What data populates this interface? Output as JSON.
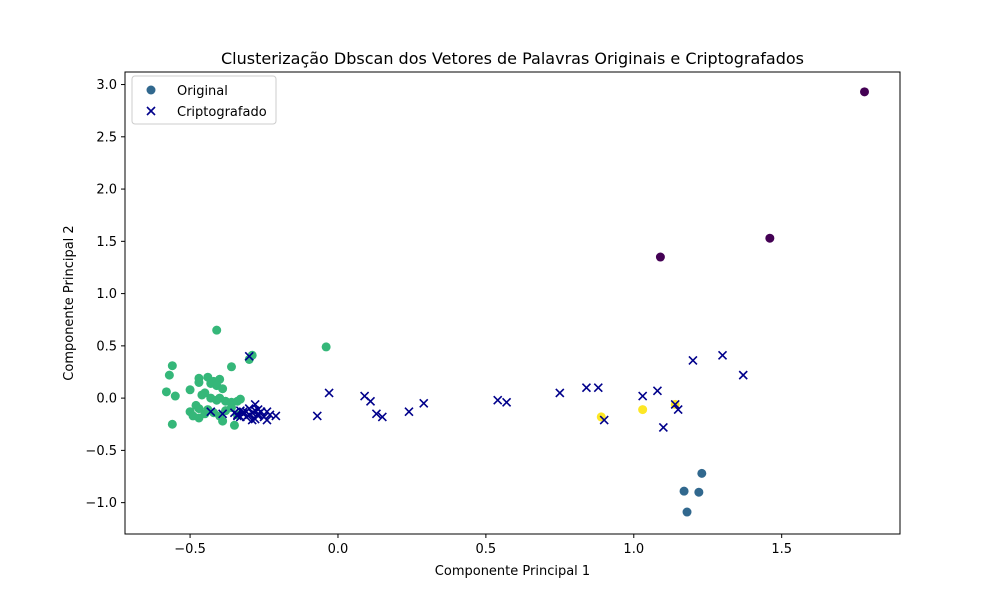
{
  "chart_data": {
    "type": "scatter",
    "title": "Clusterização Dbscan dos Vetores de Palavras Originais e Criptografados",
    "xlabel": "Componente Principal 1",
    "ylabel": "Componente Principal 2",
    "xlim": [
      -0.72,
      1.9
    ],
    "ylim": [
      -1.3,
      3.12
    ],
    "xticks": [
      -0.5,
      0.0,
      0.5,
      1.0,
      1.5
    ],
    "xtick_labels": [
      "−0.5",
      "0.0",
      "0.5",
      "1.0",
      "1.5"
    ],
    "yticks": [
      -1.0,
      -0.5,
      0.0,
      0.5,
      1.0,
      1.5,
      2.0,
      2.5,
      3.0
    ],
    "ytick_labels": [
      "−1.0",
      "−0.5",
      "0.0",
      "0.5",
      "1.0",
      "1.5",
      "2.0",
      "2.5",
      "3.0"
    ],
    "grid": false,
    "legend_position": "top-left",
    "cluster_colors": {
      "-1": "#440154",
      "0": "#31688e",
      "1": "#35b779",
      "2": "#fde725"
    },
    "series": [
      {
        "name": "Original",
        "marker": "circle",
        "legend_color": "#31688e",
        "points": [
          {
            "x": 1.78,
            "y": 2.93,
            "cluster": -1
          },
          {
            "x": 1.46,
            "y": 1.53,
            "cluster": -1
          },
          {
            "x": 1.09,
            "y": 1.35,
            "cluster": -1
          },
          {
            "x": 1.23,
            "y": -0.72,
            "cluster": 0
          },
          {
            "x": 1.17,
            "y": -0.89,
            "cluster": 0
          },
          {
            "x": 1.22,
            "y": -0.9,
            "cluster": 0
          },
          {
            "x": 1.18,
            "y": -1.09,
            "cluster": 0
          },
          {
            "x": -0.04,
            "y": 0.49,
            "cluster": 1
          },
          {
            "x": -0.41,
            "y": 0.65,
            "cluster": 1
          },
          {
            "x": -0.3,
            "y": 0.37,
            "cluster": 1
          },
          {
            "x": -0.29,
            "y": 0.41,
            "cluster": 1
          },
          {
            "x": -0.36,
            "y": 0.3,
            "cluster": 1
          },
          {
            "x": -0.56,
            "y": 0.31,
            "cluster": 1
          },
          {
            "x": -0.57,
            "y": 0.22,
            "cluster": 1
          },
          {
            "x": -0.58,
            "y": 0.06,
            "cluster": 1
          },
          {
            "x": -0.55,
            "y": 0.02,
            "cluster": 1
          },
          {
            "x": -0.5,
            "y": 0.08,
            "cluster": 1
          },
          {
            "x": -0.47,
            "y": 0.19,
            "cluster": 1
          },
          {
            "x": -0.47,
            "y": 0.15,
            "cluster": 1
          },
          {
            "x": -0.44,
            "y": 0.2,
            "cluster": 1
          },
          {
            "x": -0.43,
            "y": 0.14,
            "cluster": 1
          },
          {
            "x": -0.42,
            "y": 0.16,
            "cluster": 1
          },
          {
            "x": -0.4,
            "y": 0.18,
            "cluster": 1
          },
          {
            "x": -0.41,
            "y": 0.12,
            "cluster": 1
          },
          {
            "x": -0.39,
            "y": 0.09,
            "cluster": 1
          },
          {
            "x": -0.46,
            "y": 0.03,
            "cluster": 1
          },
          {
            "x": -0.45,
            "y": 0.05,
            "cluster": 1
          },
          {
            "x": -0.43,
            "y": 0.0,
            "cluster": 1
          },
          {
            "x": -0.41,
            "y": -0.02,
            "cluster": 1
          },
          {
            "x": -0.4,
            "y": 0.0,
            "cluster": 1
          },
          {
            "x": -0.38,
            "y": -0.03,
            "cluster": 1
          },
          {
            "x": -0.36,
            "y": -0.04,
            "cluster": 1
          },
          {
            "x": -0.34,
            "y": -0.03,
            "cluster": 1
          },
          {
            "x": -0.33,
            "y": -0.01,
            "cluster": 1
          },
          {
            "x": -0.48,
            "y": -0.07,
            "cluster": 1
          },
          {
            "x": -0.47,
            "y": -0.1,
            "cluster": 1
          },
          {
            "x": -0.5,
            "y": -0.13,
            "cluster": 1
          },
          {
            "x": -0.49,
            "y": -0.17,
            "cluster": 1
          },
          {
            "x": -0.47,
            "y": -0.19,
            "cluster": 1
          },
          {
            "x": -0.45,
            "y": -0.15,
            "cluster": 1
          },
          {
            "x": -0.44,
            "y": -0.11,
            "cluster": 1
          },
          {
            "x": -0.42,
            "y": -0.14,
            "cluster": 1
          },
          {
            "x": -0.4,
            "y": -0.17,
            "cluster": 1
          },
          {
            "x": -0.39,
            "y": -0.22,
            "cluster": 1
          },
          {
            "x": -0.38,
            "y": -0.12,
            "cluster": 1
          },
          {
            "x": -0.36,
            "y": -0.09,
            "cluster": 1
          },
          {
            "x": -0.35,
            "y": -0.26,
            "cluster": 1
          },
          {
            "x": -0.34,
            "y": -0.16,
            "cluster": 1
          },
          {
            "x": -0.56,
            "y": -0.25,
            "cluster": 1
          },
          {
            "x": 0.89,
            "y": -0.18,
            "cluster": 2
          },
          {
            "x": 1.03,
            "y": -0.11,
            "cluster": 2
          },
          {
            "x": 1.14,
            "y": -0.06,
            "cluster": 2
          }
        ]
      },
      {
        "name": "Criptografado",
        "marker": "x",
        "color": "#00008b",
        "points": [
          {
            "x": -0.3,
            "y": 0.4
          },
          {
            "x": -0.03,
            "y": 0.05
          },
          {
            "x": -0.07,
            "y": -0.17
          },
          {
            "x": 0.09,
            "y": 0.02
          },
          {
            "x": 0.11,
            "y": -0.03
          },
          {
            "x": 0.13,
            "y": -0.15
          },
          {
            "x": 0.15,
            "y": -0.18
          },
          {
            "x": 0.24,
            "y": -0.13
          },
          {
            "x": 0.29,
            "y": -0.05
          },
          {
            "x": 0.54,
            "y": -0.02
          },
          {
            "x": 0.57,
            "y": -0.04
          },
          {
            "x": 0.75,
            "y": 0.05
          },
          {
            "x": 0.84,
            "y": 0.1
          },
          {
            "x": 0.88,
            "y": 0.1
          },
          {
            "x": 0.9,
            "y": -0.21
          },
          {
            "x": 1.03,
            "y": 0.02
          },
          {
            "x": 1.08,
            "y": 0.07
          },
          {
            "x": 1.1,
            "y": -0.28
          },
          {
            "x": 1.15,
            "y": -0.11
          },
          {
            "x": 1.14,
            "y": -0.06
          },
          {
            "x": 1.2,
            "y": 0.36
          },
          {
            "x": 1.3,
            "y": 0.41
          },
          {
            "x": 1.37,
            "y": 0.22
          },
          {
            "x": -0.43,
            "y": -0.13
          },
          {
            "x": -0.39,
            "y": -0.15
          },
          {
            "x": -0.35,
            "y": -0.14
          },
          {
            "x": -0.34,
            "y": -0.17
          },
          {
            "x": -0.33,
            "y": -0.12
          },
          {
            "x": -0.32,
            "y": -0.15
          },
          {
            "x": -0.31,
            "y": -0.18
          },
          {
            "x": -0.31,
            "y": -0.13
          },
          {
            "x": -0.3,
            "y": -0.1
          },
          {
            "x": -0.3,
            "y": -0.16
          },
          {
            "x": -0.29,
            "y": -0.14
          },
          {
            "x": -0.28,
            "y": -0.12
          },
          {
            "x": -0.28,
            "y": -0.2
          },
          {
            "x": -0.28,
            "y": -0.06
          },
          {
            "x": -0.27,
            "y": -0.15
          },
          {
            "x": -0.27,
            "y": -0.17
          },
          {
            "x": -0.26,
            "y": -0.13
          },
          {
            "x": -0.25,
            "y": -0.18
          },
          {
            "x": -0.24,
            "y": -0.21
          },
          {
            "x": -0.24,
            "y": -0.13
          },
          {
            "x": -0.23,
            "y": -0.16
          },
          {
            "x": -0.21,
            "y": -0.17
          },
          {
            "x": -0.34,
            "y": -0.16
          },
          {
            "x": -0.33,
            "y": -0.18
          },
          {
            "x": -0.29,
            "y": -0.21
          },
          {
            "x": -0.32,
            "y": -0.13
          },
          {
            "x": -0.27,
            "y": -0.11
          }
        ]
      }
    ]
  }
}
